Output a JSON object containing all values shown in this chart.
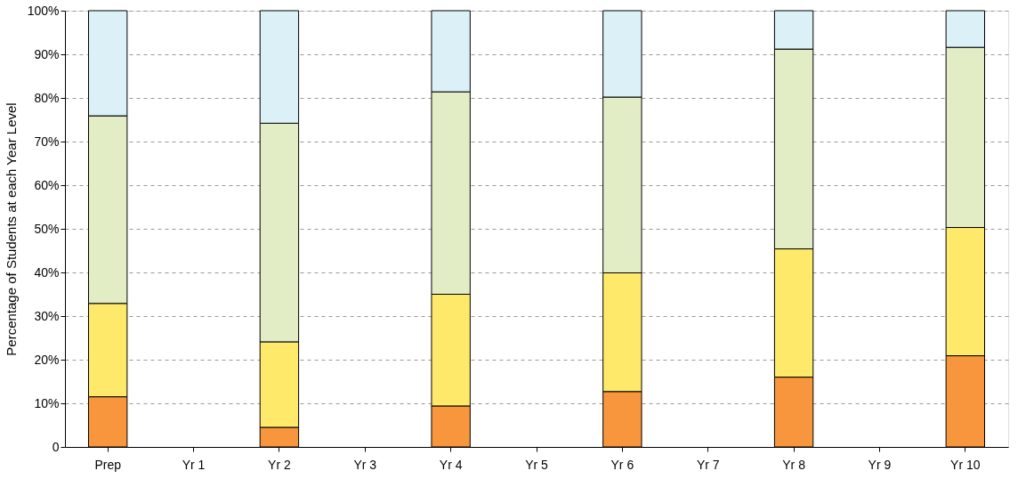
{
  "chart_data": {
    "type": "bar",
    "stacked": true,
    "ylabel": "Percentage of Students at each Year Level",
    "categories": [
      "Prep",
      "Yr 1",
      "Yr 2",
      "Yr 3",
      "Yr 4",
      "Yr 5",
      "Yr 6",
      "Yr 7",
      "Yr 8",
      "Yr 9",
      "Yr 10"
    ],
    "series": [
      {
        "color": "#f7963c",
        "values": [
          11.5,
          null,
          4.5,
          null,
          9.4,
          null,
          12.7,
          null,
          16.0,
          null,
          20.9
        ]
      },
      {
        "color": "#fee96b",
        "values": [
          21.4,
          null,
          19.6,
          null,
          25.6,
          null,
          27.2,
          null,
          29.4,
          null,
          29.4
        ]
      },
      {
        "color": "#e2edc5",
        "values": [
          43.0,
          null,
          50.1,
          null,
          46.4,
          null,
          40.3,
          null,
          45.8,
          null,
          41.3
        ]
      },
      {
        "color": "#dbf0f7",
        "values": [
          24.1,
          null,
          25.8,
          null,
          18.6,
          null,
          19.8,
          null,
          8.8,
          null,
          8.4
        ]
      }
    ],
    "ylim": [
      0,
      100
    ],
    "yticks": [
      0,
      {
        "value": 10,
        "label": "10%"
      },
      {
        "value": 20,
        "label": "20%"
      },
      {
        "value": 30,
        "label": "30%"
      },
      {
        "value": 40,
        "label": "40%"
      },
      {
        "value": 50,
        "label": "50%"
      },
      {
        "value": 60,
        "label": "60%"
      },
      {
        "value": 70,
        "label": "70%"
      },
      {
        "value": 80,
        "label": "80%"
      },
      {
        "value": 90,
        "label": "90%"
      },
      {
        "value": 100,
        "label": "100%"
      }
    ],
    "grid": "y",
    "legend": false
  }
}
